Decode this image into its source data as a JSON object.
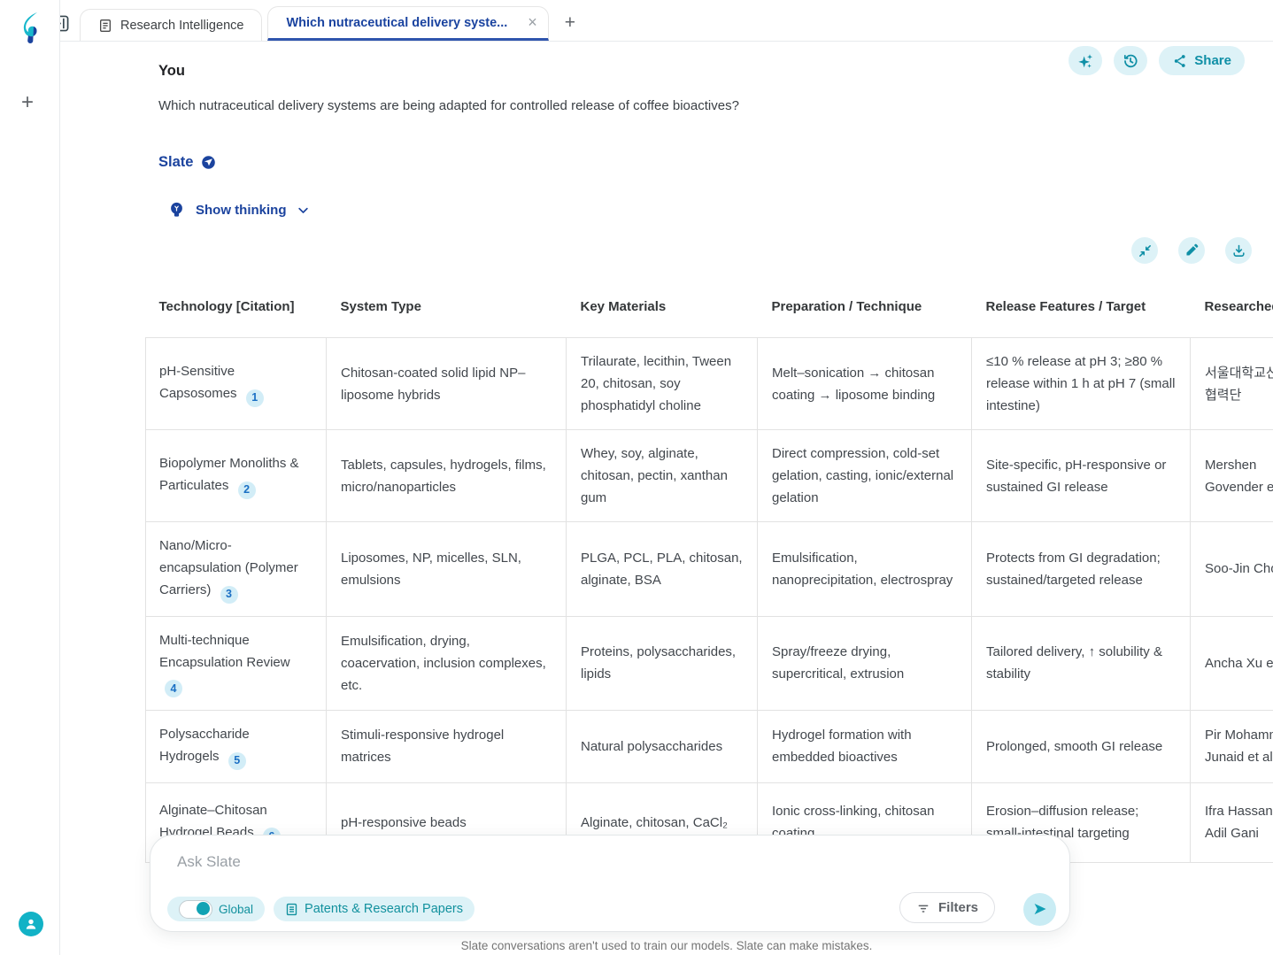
{
  "colors": {
    "accent_teal": "#0f8fa6",
    "light_teal_bg": "#ddf2f7",
    "navy": "#1b439e",
    "badge_blue": "#1a6fc4",
    "avatar_teal": "#12b2c6",
    "active_tab_underline": "#2f55ad"
  },
  "icons": {
    "close": "×",
    "plus": "+",
    "send": "➤"
  },
  "tabbar": {
    "tabs": [
      {
        "label": "Research Intelligence"
      },
      {
        "label": "Which nutraceutical delivery syste..."
      }
    ],
    "new_tab": "+"
  },
  "actions": {
    "share_label": "Share"
  },
  "conversation": {
    "user_label": "You",
    "question": "Which nutraceutical delivery systems are being adapted for controlled release of coffee bioactives?",
    "assistant_label": "Slate",
    "show_thinking_label": "Show thinking"
  },
  "table": {
    "columns": [
      "Technology [Citation]",
      "System Type",
      "Key Materials",
      "Preparation / Technique",
      "Release Features / Target",
      "Researched By"
    ],
    "rows": [
      {
        "technology": "pH-Sensitive Capsosomes",
        "citation": "1",
        "system_type": "Chitosan-coated solid lipid NP–liposome hybrids",
        "key_materials": "Trilaurate, lecithin, Tween 20, chitosan, soy phosphatidyl choline",
        "preparation": "Melt–sonication → chitosan coating → liposome binding",
        "release": "≤10 % release at pH 3; ≥80 % release within 1 h at pH 7 (small intestine)",
        "researched_by": "서울대학교산학협력단"
      },
      {
        "technology": "Biopolymer Monoliths & Particulates",
        "citation": "2",
        "system_type": "Tablets, capsules, hydrogels, films, micro/nanoparticles",
        "key_materials": "Whey, soy, alginate, chitosan, pectin, xanthan gum",
        "preparation": "Direct compression, cold-set gelation, casting, ionic/external gelation",
        "release": "Site-specific, pH-responsive or sustained GI release",
        "researched_by": "Mershen Govender et al."
      },
      {
        "technology": "Nano/Micro-encapsulation (Polymer Carriers)",
        "citation": "3",
        "system_type": "Liposomes, NP, micelles, SLN, emulsions",
        "key_materials": "PLGA, PCL, PLA, chitosan, alginate, BSA",
        "preparation": "Emulsification, nanoprecipitation, electrospray",
        "release": "Protects from GI degradation; sustained/targeted release",
        "researched_by": "Soo-Jin Choi"
      },
      {
        "technology": "Multi-technique Encapsulation Review",
        "citation": "4",
        "system_type": "Emulsification, drying, coacervation, inclusion complexes, etc.",
        "key_materials": "Proteins, polysaccharides, lipids",
        "preparation": "Spray/freeze drying, supercritical, extrusion",
        "release": "Tailored delivery, ↑ solubility & stability",
        "researched_by": "Ancha Xu et al."
      },
      {
        "technology": "Polysaccharide Hydrogels",
        "citation": "5",
        "system_type": "Stimuli-responsive hydrogel matrices",
        "key_materials": "Natural polysaccharides",
        "preparation": "Hydrogel formation with embedded bioactives",
        "release": "Prolonged, smooth GI release",
        "researched_by": "Pir Mohammad Junaid et al."
      },
      {
        "technology": "Alginate–Chitosan Hydrogel Beads",
        "citation": "6",
        "system_type": "pH-responsive beads",
        "key_materials": "Alginate, chitosan, CaCl₂",
        "preparation": "Ionic cross-linking, chitosan coating",
        "release": "Erosion–diffusion release; small-intestinal targeting",
        "researched_by": "Ifra Hassan, Adil Gani"
      }
    ]
  },
  "composer": {
    "placeholder": "Ask Slate",
    "global_label": "Global",
    "source_chip_label": "Patents & Research Papers",
    "filters_label": "Filters"
  },
  "footer": {
    "disclaimer": "Slate conversations aren't used to train our models. Slate can make mistakes."
  }
}
